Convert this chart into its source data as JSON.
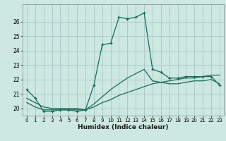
{
  "xlabel": "Humidex (Indice chaleur)",
  "background_color": "#cce8e0",
  "grid_color": "#aacccc",
  "line_color": "#1a6b5a",
  "xlim": [
    -0.5,
    23.5
  ],
  "ylim": [
    19.5,
    27.2
  ],
  "yticks": [
    20,
    21,
    22,
    23,
    24,
    25,
    26
  ],
  "xticks": [
    0,
    1,
    2,
    3,
    4,
    5,
    6,
    7,
    8,
    9,
    10,
    11,
    12,
    13,
    14,
    15,
    16,
    17,
    18,
    19,
    20,
    21,
    22,
    23
  ],
  "curve1_x": [
    0,
    1,
    2,
    3,
    4,
    5,
    6,
    7,
    8,
    9,
    10,
    11,
    12,
    13,
    14,
    15,
    16,
    17,
    18,
    19,
    20,
    21,
    22,
    23
  ],
  "curve1_y": [
    21.3,
    20.7,
    19.8,
    19.8,
    19.9,
    19.9,
    19.8,
    19.9,
    21.6,
    24.4,
    24.5,
    26.3,
    26.2,
    26.3,
    26.6,
    22.7,
    22.5,
    22.1,
    22.1,
    22.2,
    22.2,
    22.2,
    22.2,
    21.6
  ],
  "curve2_x": [
    0,
    1,
    2,
    3,
    4,
    5,
    6,
    7,
    8,
    9,
    10,
    11,
    12,
    13,
    14,
    15,
    16,
    17,
    18,
    19,
    20,
    21,
    22,
    23
  ],
  "curve2_y": [
    20.4,
    20.1,
    19.9,
    19.9,
    19.9,
    19.9,
    19.9,
    19.9,
    20.1,
    20.4,
    20.6,
    20.9,
    21.1,
    21.3,
    21.5,
    21.7,
    21.8,
    21.9,
    22.0,
    22.1,
    22.1,
    22.2,
    22.3,
    22.3
  ],
  "curve3_x": [
    0,
    1,
    2,
    3,
    4,
    5,
    6,
    7,
    8,
    9,
    10,
    11,
    12,
    13,
    14,
    15,
    16,
    17,
    18,
    19,
    20,
    21,
    22,
    23
  ],
  "curve3_y": [
    20.7,
    20.4,
    20.1,
    20.0,
    20.0,
    20.0,
    20.0,
    19.9,
    20.3,
    20.8,
    21.3,
    21.7,
    22.1,
    22.4,
    22.7,
    21.9,
    21.8,
    21.7,
    21.7,
    21.8,
    21.9,
    21.9,
    22.0,
    21.7
  ]
}
